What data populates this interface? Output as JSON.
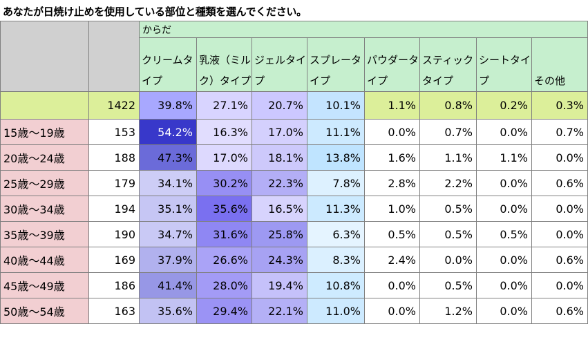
{
  "title": "あなたが日焼け止めを使用している部位と種類を選んでください。",
  "table": {
    "group_label": "からだ",
    "columns": [
      "クリームタイプ",
      "乳液（ミルク）タイプ",
      "ジェルタイプ",
      "スプレータイプ",
      "パウダータイプ",
      "スティックタイプ",
      "シートタイプ",
      "その他"
    ],
    "total": {
      "label": "",
      "n": "1422",
      "values": [
        "39.8%",
        "27.1%",
        "20.7%",
        "10.1%",
        "1.1%",
        "0.8%",
        "0.2%",
        "0.3%"
      ]
    },
    "rows": [
      {
        "label": "15歳～19歳",
        "n": "153",
        "values": [
          "54.2%",
          "16.3%",
          "17.0%",
          "11.1%",
          "0.0%",
          "0.7%",
          "0.0%",
          "0.7%"
        ]
      },
      {
        "label": "20歳～24歳",
        "n": "188",
        "values": [
          "47.3%",
          "17.0%",
          "18.1%",
          "13.8%",
          "1.6%",
          "1.1%",
          "1.1%",
          "0.0%"
        ]
      },
      {
        "label": "25歳～29歳",
        "n": "179",
        "values": [
          "34.1%",
          "30.2%",
          "22.3%",
          "7.8%",
          "2.8%",
          "2.2%",
          "0.0%",
          "0.6%"
        ]
      },
      {
        "label": "30歳～34歳",
        "n": "194",
        "values": [
          "35.1%",
          "35.6%",
          "16.5%",
          "11.3%",
          "1.0%",
          "0.5%",
          "0.0%",
          "0.0%"
        ]
      },
      {
        "label": "35歳～39歳",
        "n": "190",
        "values": [
          "34.7%",
          "31.6%",
          "25.8%",
          "6.3%",
          "0.5%",
          "0.5%",
          "0.5%",
          "0.0%"
        ]
      },
      {
        "label": "40歳～44歳",
        "n": "169",
        "values": [
          "37.9%",
          "26.6%",
          "24.3%",
          "8.3%",
          "2.4%",
          "0.0%",
          "0.0%",
          "0.6%"
        ]
      },
      {
        "label": "45歳～49歳",
        "n": "186",
        "values": [
          "41.4%",
          "28.0%",
          "19.4%",
          "10.8%",
          "0.0%",
          "0.5%",
          "0.0%",
          "0.0%"
        ]
      },
      {
        "label": "50歳～54歳",
        "n": "163",
        "values": [
          "35.6%",
          "29.4%",
          "22.1%",
          "11.0%",
          "0.0%",
          "1.2%",
          "0.0%",
          "0.6%"
        ]
      }
    ],
    "colors": {
      "header_green": "#c6efce",
      "total_row": "#dcef9a",
      "age_label": "#f2cfd2",
      "corner": "#d0d0d0"
    }
  }
}
